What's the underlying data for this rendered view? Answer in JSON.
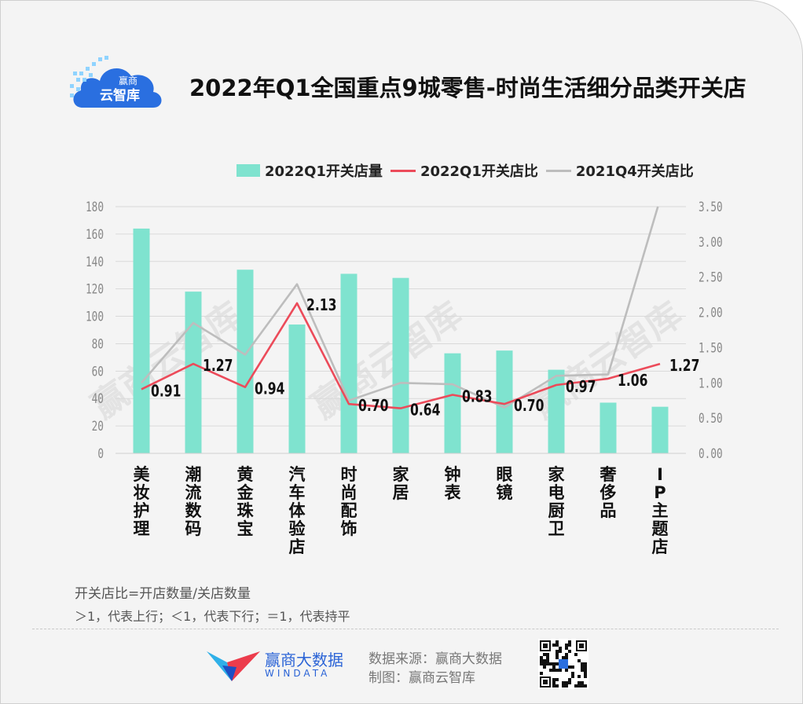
{
  "header": {
    "title": "2022年Q1全国重点9城零售-时尚生活细分品类开关店",
    "logo_text": "赢商云智库"
  },
  "colors": {
    "bar": "#7fe3cf",
    "line_2022": "#ec4b5a",
    "line_2021": "#bdbdbd",
    "watermark": "#e3e3e3"
  },
  "chart_data": {
    "type": "bar",
    "categories": [
      "美妆护理",
      "潮流数码",
      "黄金珠宝",
      "汽车体验店",
      "时尚配饰",
      "家居",
      "钟表",
      "眼镜",
      "家电厨卫",
      "奢侈品",
      "IP主题店"
    ],
    "series": [
      {
        "name": "2022Q1开关店量",
        "type": "bar",
        "axis": "left",
        "values": [
          164,
          118,
          134,
          94,
          131,
          128,
          73,
          75,
          61,
          37,
          34
        ]
      },
      {
        "name": "2022Q1开关店比",
        "type": "line",
        "axis": "right",
        "values": [
          0.91,
          1.27,
          0.94,
          2.13,
          0.7,
          0.64,
          0.83,
          0.7,
          0.97,
          1.06,
          1.27
        ]
      },
      {
        "name": "2021Q4开关店比",
        "type": "line",
        "axis": "right",
        "values": [
          1.0,
          1.85,
          1.4,
          2.4,
          0.75,
          1.0,
          0.98,
          0.65,
          1.1,
          1.12,
          3.6
        ]
      }
    ],
    "data_labels": [
      "0.91",
      "1.27",
      "0.94",
      "2.13",
      "0.70",
      "0.64",
      "0.83",
      "0.70",
      "0.97",
      "1.06",
      "1.27"
    ],
    "y_left": {
      "ticks": [
        "0",
        "20",
        "40",
        "60",
        "80",
        "100",
        "120",
        "140",
        "160",
        "180"
      ],
      "ylim": [
        0,
        180
      ]
    },
    "y_right": {
      "ticks": [
        "0.00",
        "0.50",
        "1.00",
        "1.50",
        "2.00",
        "2.50",
        "3.00",
        "3.50"
      ],
      "ylim": [
        0,
        3.5
      ]
    },
    "grid": true,
    "legend_position": "top",
    "watermark": "赢商云智库"
  },
  "footer": {
    "note_line1": "开关店比=开店数量/关店数量",
    "note_line2": "＞1，代表上行；＜1，代表下行；＝1，代表持平",
    "brand_cn": "赢商大数据",
    "brand_en": "WINDATA",
    "source": "数据来源：赢商大数据",
    "maker": "制图：赢商云智库"
  }
}
